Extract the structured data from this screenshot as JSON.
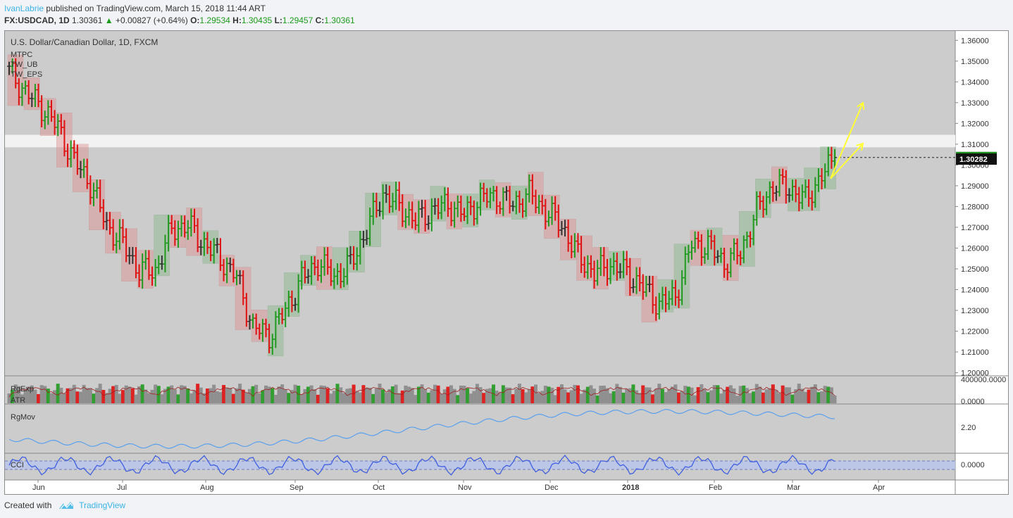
{
  "header": {
    "author": "IvanLabrie",
    "published": "published on TradingView.com, March 15, 2018 11:44 ART",
    "symbol": "FX:USDCAD, 1D",
    "last": "1.30361",
    "change": "+0.00827 (+0.64%)",
    "o_label": "O:",
    "o": "1.29534",
    "h_label": "H:",
    "h": "1.30435",
    "l_label": "L:",
    "l": "1.29457",
    "c_label": "C:",
    "c": "1.30361"
  },
  "footer": {
    "created": "Created with",
    "brand": "TradingView"
  },
  "colors": {
    "up": "#1f9a1f",
    "down": "#e01010",
    "neutral": "#333333",
    "pane": "#cccccc",
    "arrow": "#ffff33",
    "line": "#5aa0ee",
    "cci": "#4060e0"
  },
  "chart_data": [
    {
      "type": "candlestick",
      "pane": "price",
      "title": "U.S. Dollar/Canadian Dollar, 1D, FXCM",
      "indicators": [
        "MTPC",
        "TW_UB",
        "TW_EPS"
      ],
      "y_ticks": [
        "1.36000",
        "1.35000",
        "1.34000",
        "1.33000",
        "1.32000",
        "1.31000",
        "1.30000",
        "1.29000",
        "1.28000",
        "1.27000",
        "1.26000",
        "1.25000",
        "1.24000",
        "1.23000",
        "1.22000",
        "1.21000",
        "1.20000"
      ],
      "ylim": [
        1.1985,
        1.3645
      ],
      "x_ticks": [
        "Jun",
        "Jul",
        "Aug",
        "Sep",
        "Oct",
        "Nov",
        "Dec",
        "2018",
        "Feb",
        "Mar",
        "Apr"
      ],
      "last_price_label": "1.30361",
      "second_price_label": "1.30282",
      "last_price": 1.30361,
      "second_price": 1.30282,
      "resistance_zone": [
        1.3085,
        1.3145
      ],
      "weekly_path": [
        1.345,
        1.335,
        1.328,
        1.318,
        1.302,
        1.291,
        1.271,
        1.262,
        1.249,
        1.249,
        1.269,
        1.271,
        1.262,
        1.255,
        1.246,
        1.222,
        1.218,
        1.23,
        1.245,
        1.253,
        1.246,
        1.252,
        1.269,
        1.286,
        1.28,
        1.273,
        1.278,
        1.281,
        1.276,
        1.284,
        1.285,
        1.281,
        1.286,
        1.278,
        1.271,
        1.256,
        1.248,
        1.252,
        1.248,
        1.241,
        1.233,
        1.237,
        1.262,
        1.261,
        1.253,
        1.258,
        1.278,
        1.29,
        1.289,
        1.283,
        1.295,
        1.304
      ]
    },
    {
      "type": "bar",
      "pane": "volume",
      "labels": [
        "RgExp",
        "ATR"
      ],
      "y_ticks": [
        "400000.0000",
        "0.0000"
      ]
    },
    {
      "type": "line",
      "pane": "indicator",
      "label": "RgMov",
      "y_ticks": [
        "2.20"
      ]
    },
    {
      "type": "line",
      "pane": "indicator",
      "label": "CCI",
      "y_ticks": [
        "0.0000"
      ]
    }
  ]
}
